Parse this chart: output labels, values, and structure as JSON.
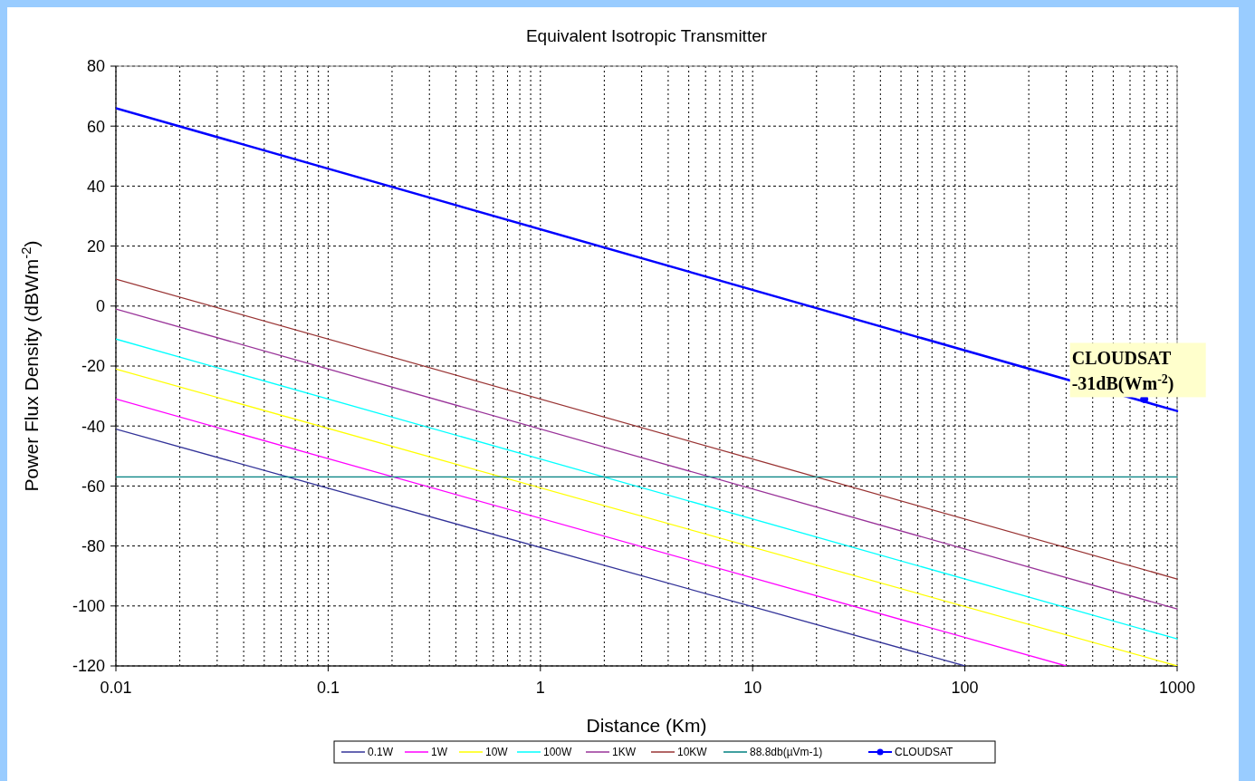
{
  "chart_data": {
    "type": "line",
    "title": "Equivalent Isotropic Transmitter",
    "xlabel": "Distance (Km)",
    "ylabel": "Power Flux Density (dBWm$^{-2}$)",
    "log": "x",
    "xlim": [
      0.01,
      1000
    ],
    "xticks": [
      0.01,
      0.1,
      1,
      10,
      100,
      1000
    ],
    "ylim": [
      -120,
      80
    ],
    "yticks": [
      -120,
      -100,
      -80,
      -60,
      -40,
      -20,
      0,
      20,
      40,
      60,
      80
    ],
    "grid": true,
    "legend": "bottom",
    "series": [
      {
        "name": "0.1W",
        "color": "#333399",
        "x": [
          0.01,
          100
        ],
        "values": [
          -41,
          -120
        ]
      },
      {
        "name": "1W",
        "color": "#ff00ff",
        "x": [
          0.01,
          300
        ],
        "values": [
          -31,
          -120
        ]
      },
      {
        "name": "10W",
        "color": "#ffff00",
        "x": [
          0.01,
          1000
        ],
        "values": [
          -21,
          -120
        ]
      },
      {
        "name": "100W",
        "color": "#00ffff",
        "x": [
          0.01,
          1000
        ],
        "values": [
          -11,
          -111
        ]
      },
      {
        "name": "1KW",
        "color": "#993399",
        "x": [
          0.01,
          1000
        ],
        "values": [
          -1,
          -101
        ]
      },
      {
        "name": "10KW",
        "color": "#993333",
        "x": [
          0.01,
          1000
        ],
        "values": [
          9,
          -91
        ]
      },
      {
        "name": "88.8db(µVm-1)",
        "color": "#008080",
        "x": [
          0.01,
          1000
        ],
        "values": [
          -57,
          -57
        ]
      },
      {
        "color": "#0000ff",
        "x": [
          0.01,
          1000
        ],
        "values": [
          66,
          -35
        ]
      },
      {
        "name": "CLOUDSAT",
        "type": "scatter",
        "marker": "circle",
        "color": "#0000ff",
        "x": [
          700
        ],
        "values": [
          -31
        ]
      }
    ],
    "annotations": [
      {
        "text": "CLOUDSAT\n-31dB(Wm$^{-2}$)",
        "x": 700,
        "y": -31
      }
    ]
  }
}
